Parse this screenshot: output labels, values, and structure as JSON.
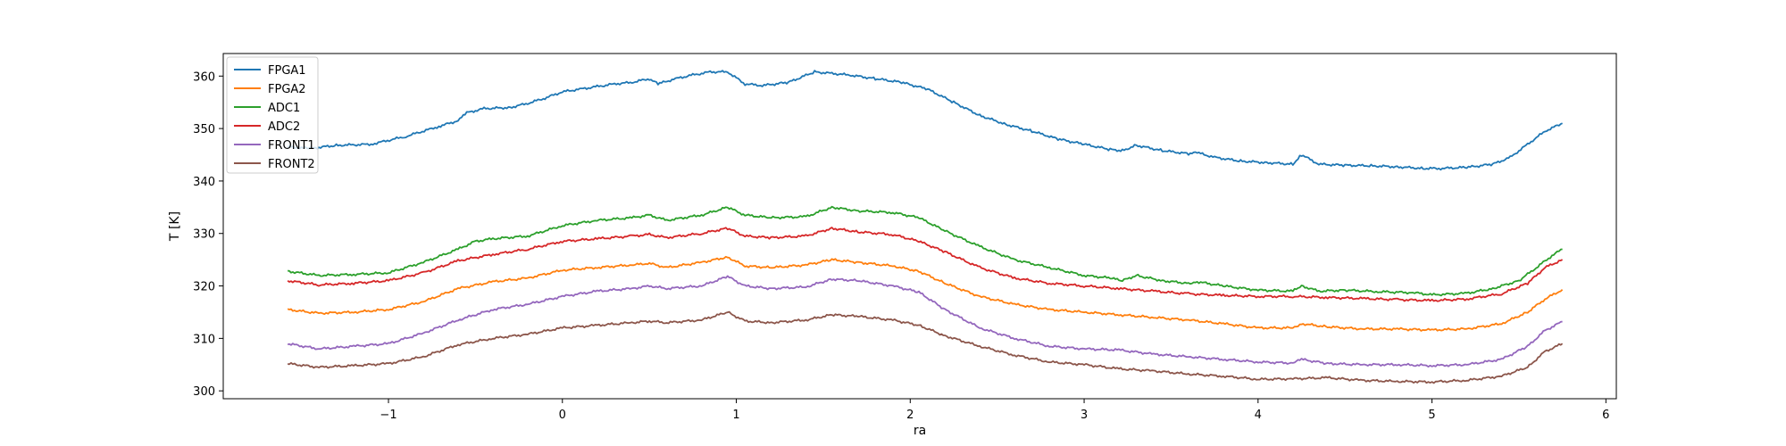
{
  "chart_data": {
    "type": "line",
    "xlabel": "ra",
    "ylabel": "T [K]",
    "xlim": [
      -1.95,
      6.06
    ],
    "ylim": [
      298.5,
      364.3
    ],
    "xticks": [
      -1,
      0,
      1,
      2,
      3,
      4,
      5,
      6
    ],
    "xtick_labels": [
      "−1",
      "0",
      "1",
      "2",
      "3",
      "4",
      "5",
      "6"
    ],
    "yticks": [
      300,
      310,
      320,
      330,
      340,
      350,
      360
    ],
    "ytick_labels": [
      "300",
      "310",
      "320",
      "330",
      "340",
      "350",
      "360"
    ],
    "grid": false,
    "legend_position": "top-left",
    "series": [
      {
        "name": "FPGA1",
        "color": "#1f77b4",
        "x": [
          -1.58,
          -1.45,
          -1.3,
          -1.1,
          -0.9,
          -0.7,
          -0.6,
          -0.55,
          -0.45,
          -0.3,
          -0.2,
          -0.1,
          0.0,
          0.1,
          0.2,
          0.3,
          0.4,
          0.5,
          0.55,
          0.65,
          0.75,
          0.85,
          0.95,
          1.05,
          1.15,
          1.3,
          1.45,
          1.55,
          1.65,
          1.8,
          1.95,
          2.1,
          2.25,
          2.4,
          2.55,
          2.7,
          2.85,
          3.0,
          3.15,
          3.22,
          3.3,
          3.45,
          3.6,
          3.65,
          3.75,
          3.9,
          4.05,
          4.2,
          4.25,
          4.35,
          4.5,
          4.65,
          4.8,
          4.95,
          5.05,
          5.2,
          5.35,
          5.45,
          5.55,
          5.65,
          5.75
        ],
        "y": [
          346.5,
          346.2,
          346.8,
          347.0,
          348.5,
          350.5,
          351.5,
          353.0,
          353.8,
          354.0,
          354.8,
          355.8,
          357.0,
          357.5,
          358.0,
          358.5,
          358.8,
          359.5,
          358.5,
          359.5,
          360.2,
          360.8,
          360.8,
          358.5,
          358.2,
          358.8,
          360.8,
          360.5,
          360.2,
          359.5,
          358.8,
          357.5,
          355.0,
          352.5,
          350.8,
          349.5,
          348.0,
          347.0,
          346.0,
          345.8,
          346.8,
          345.8,
          345.2,
          345.4,
          344.5,
          343.8,
          343.5,
          343.2,
          345.0,
          343.2,
          343.0,
          342.9,
          342.7,
          342.4,
          342.4,
          342.6,
          343.2,
          344.5,
          347.0,
          349.5,
          351.0
        ]
      },
      {
        "name": "FPGA2",
        "color": "#ff7f0e",
        "x": [
          -1.58,
          -1.4,
          -1.2,
          -1.0,
          -0.8,
          -0.6,
          -0.4,
          -0.2,
          0.0,
          0.2,
          0.4,
          0.5,
          0.6,
          0.8,
          0.95,
          1.05,
          1.2,
          1.4,
          1.55,
          1.7,
          1.9,
          2.05,
          2.2,
          2.4,
          2.6,
          2.8,
          3.0,
          3.2,
          3.4,
          3.6,
          3.8,
          4.0,
          4.2,
          4.25,
          4.4,
          4.6,
          4.8,
          5.0,
          5.2,
          5.4,
          5.55,
          5.65,
          5.75
        ],
        "y": [
          315.5,
          314.8,
          315.0,
          315.5,
          317.0,
          319.5,
          320.8,
          321.5,
          323.0,
          323.5,
          324.0,
          324.3,
          323.5,
          324.5,
          325.5,
          323.8,
          323.5,
          324.0,
          325.0,
          324.5,
          323.8,
          322.8,
          320.5,
          318.0,
          316.5,
          315.5,
          315.0,
          314.5,
          314.0,
          313.5,
          312.8,
          312.0,
          312.0,
          312.8,
          312.2,
          311.8,
          311.8,
          311.6,
          311.8,
          312.8,
          315.0,
          317.5,
          319.3
        ]
      },
      {
        "name": "ADC1",
        "color": "#2ca02c",
        "x": [
          -1.58,
          -1.4,
          -1.2,
          -1.0,
          -0.8,
          -0.6,
          -0.5,
          -0.4,
          -0.2,
          0.0,
          0.2,
          0.4,
          0.5,
          0.6,
          0.8,
          0.95,
          1.05,
          1.2,
          1.4,
          1.55,
          1.7,
          1.9,
          2.05,
          2.2,
          2.4,
          2.6,
          2.8,
          3.0,
          3.15,
          3.22,
          3.3,
          3.45,
          3.6,
          3.65,
          3.8,
          4.0,
          4.2,
          4.25,
          4.35,
          4.5,
          4.7,
          4.9,
          5.0,
          5.2,
          5.35,
          5.5,
          5.6,
          5.7,
          5.75
        ],
        "y": [
          322.8,
          322.0,
          322.2,
          322.5,
          324.5,
          327.0,
          328.5,
          329.0,
          329.5,
          331.5,
          332.5,
          333.0,
          333.5,
          332.5,
          333.5,
          335.0,
          333.5,
          333.0,
          333.2,
          335.0,
          334.3,
          334.0,
          333.0,
          330.5,
          327.5,
          325.0,
          323.5,
          322.0,
          321.5,
          321.0,
          322.0,
          321.0,
          320.5,
          320.8,
          320.0,
          319.2,
          319.0,
          320.0,
          319.0,
          319.2,
          318.9,
          318.7,
          318.3,
          318.6,
          319.5,
          321.0,
          323.5,
          326.0,
          327.0
        ]
      },
      {
        "name": "ADC2",
        "color": "#d62728",
        "x": [
          -1.58,
          -1.4,
          -1.2,
          -1.0,
          -0.8,
          -0.6,
          -0.4,
          -0.2,
          0.0,
          0.2,
          0.4,
          0.5,
          0.6,
          0.8,
          0.95,
          1.05,
          1.2,
          1.4,
          1.55,
          1.7,
          1.9,
          2.05,
          2.2,
          2.4,
          2.6,
          2.8,
          3.0,
          3.2,
          3.4,
          3.6,
          3.8,
          4.0,
          4.2,
          4.4,
          4.6,
          4.8,
          5.0,
          5.2,
          5.4,
          5.55,
          5.65,
          5.75
        ],
        "y": [
          321.0,
          320.2,
          320.5,
          321.0,
          322.5,
          324.8,
          326.0,
          327.0,
          328.5,
          329.0,
          329.5,
          329.8,
          329.2,
          330.0,
          331.0,
          329.5,
          329.2,
          329.5,
          331.0,
          330.3,
          329.8,
          328.5,
          326.5,
          323.5,
          321.5,
          320.5,
          320.0,
          319.5,
          319.0,
          318.5,
          318.2,
          318.0,
          318.0,
          317.8,
          317.6,
          317.4,
          317.2,
          317.5,
          318.5,
          320.5,
          323.5,
          325.0
        ]
      },
      {
        "name": "FRONT1",
        "color": "#9467bd",
        "x": [
          -1.58,
          -1.4,
          -1.2,
          -1.0,
          -0.8,
          -0.6,
          -0.4,
          -0.2,
          0.0,
          0.2,
          0.4,
          0.5,
          0.6,
          0.8,
          0.95,
          1.05,
          1.2,
          1.4,
          1.55,
          1.7,
          1.9,
          2.05,
          2.2,
          2.4,
          2.6,
          2.8,
          3.0,
          3.2,
          3.4,
          3.6,
          3.8,
          4.0,
          4.2,
          4.25,
          4.4,
          4.6,
          4.8,
          5.0,
          5.2,
          5.4,
          5.55,
          5.65,
          5.75
        ],
        "y": [
          309.0,
          308.0,
          308.5,
          309.0,
          311.0,
          313.5,
          315.5,
          316.5,
          318.0,
          319.0,
          319.5,
          320.0,
          319.5,
          320.0,
          321.8,
          320.0,
          319.5,
          319.8,
          321.3,
          321.0,
          320.0,
          318.8,
          315.5,
          312.0,
          310.0,
          308.5,
          308.0,
          307.8,
          307.0,
          306.5,
          306.0,
          305.5,
          305.3,
          306.0,
          305.2,
          305.0,
          305.0,
          304.8,
          305.0,
          306.0,
          308.5,
          311.5,
          313.2
        ]
      },
      {
        "name": "FRONT2",
        "color": "#8c564b",
        "x": [
          -1.58,
          -1.4,
          -1.2,
          -1.0,
          -0.8,
          -0.6,
          -0.4,
          -0.2,
          0.0,
          0.2,
          0.4,
          0.5,
          0.6,
          0.8,
          0.95,
          1.05,
          1.2,
          1.4,
          1.55,
          1.7,
          1.9,
          2.05,
          2.2,
          2.4,
          2.6,
          2.8,
          3.0,
          3.2,
          3.4,
          3.6,
          3.8,
          4.0,
          4.2,
          4.4,
          4.6,
          4.8,
          5.0,
          5.2,
          5.4,
          5.55,
          5.65,
          5.75
        ],
        "y": [
          305.2,
          304.5,
          304.8,
          305.2,
          306.5,
          308.8,
          310.0,
          310.8,
          312.0,
          312.5,
          313.0,
          313.3,
          313.0,
          313.5,
          315.0,
          313.3,
          313.0,
          313.5,
          314.5,
          314.2,
          313.5,
          312.5,
          310.5,
          308.5,
          306.8,
          305.5,
          305.0,
          304.2,
          303.8,
          303.2,
          302.8,
          302.2,
          302.3,
          302.5,
          302.0,
          301.8,
          301.7,
          302.0,
          302.8,
          304.5,
          307.5,
          309.0
        ]
      }
    ]
  }
}
